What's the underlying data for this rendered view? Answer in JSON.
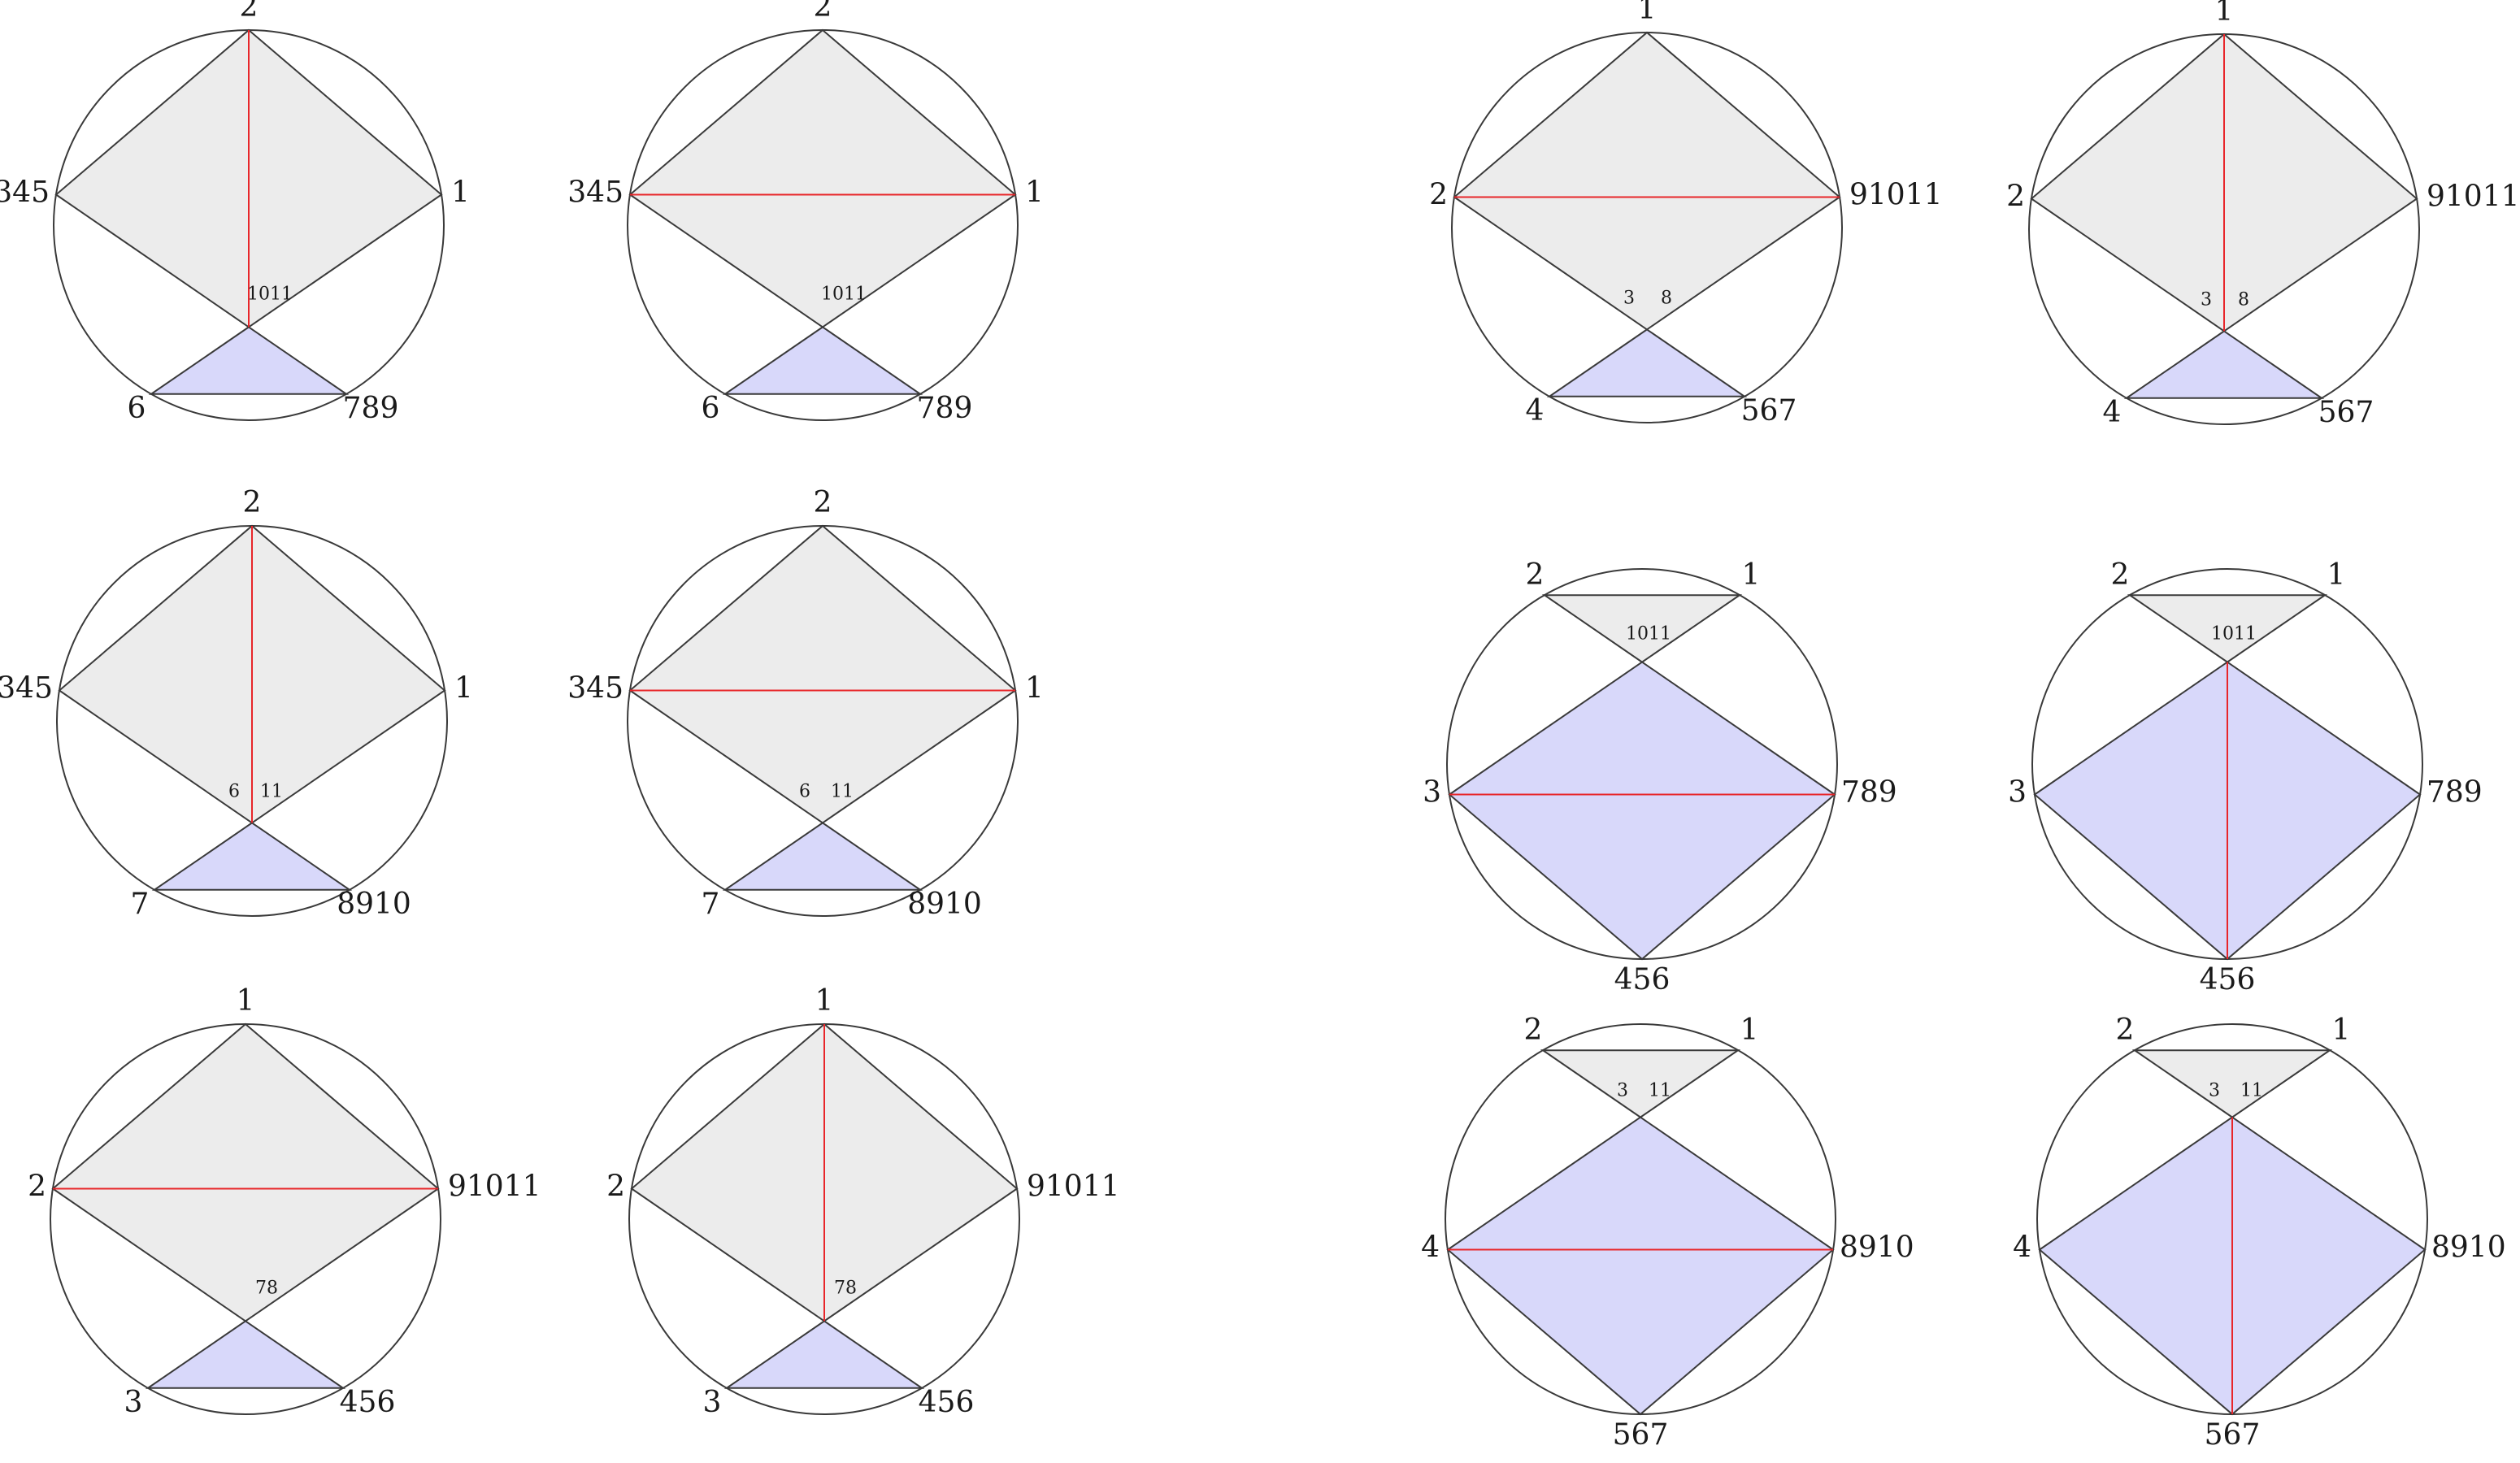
{
  "diagrams": [
    {
      "id": "r1c1",
      "scheme": "A",
      "diag": "vertical",
      "labels": {
        "top": "2",
        "left": "345",
        "right": "1",
        "bl": "6",
        "br": "789"
      },
      "inner": [
        "1011"
      ]
    },
    {
      "id": "r1c2",
      "scheme": "A",
      "diag": "horizontal",
      "labels": {
        "top": "2",
        "left": "345",
        "right": "1",
        "bl": "6",
        "br": "789"
      },
      "inner": [
        "1011"
      ]
    },
    {
      "id": "r1c3",
      "scheme": "A",
      "diag": "horizontal",
      "labels": {
        "top": "1",
        "left": "2",
        "right": "91011",
        "bl": "4",
        "br": "567"
      },
      "inner": [
        "3",
        "8"
      ]
    },
    {
      "id": "r1c4",
      "scheme": "A",
      "diag": "vertical",
      "labels": {
        "top": "1",
        "left": "2",
        "right": "91011",
        "bl": "4",
        "br": "567"
      },
      "inner": [
        "3",
        "8"
      ]
    },
    {
      "id": "r2c1",
      "scheme": "A",
      "diag": "vertical",
      "labels": {
        "top": "2",
        "left": "345",
        "right": "1",
        "bl": "7",
        "br": "8910"
      },
      "inner": [
        "6",
        "11"
      ]
    },
    {
      "id": "r2c2",
      "scheme": "A",
      "diag": "horizontal",
      "labels": {
        "top": "2",
        "left": "345",
        "right": "1",
        "bl": "7",
        "br": "8910"
      },
      "inner": [
        "6",
        "11"
      ]
    },
    {
      "id": "r2c3",
      "scheme": "B",
      "diag": "horizontal",
      "labels": {
        "tl": "2",
        "tr": "1",
        "left": "3",
        "right": "789",
        "bottom": "456"
      },
      "inner": [
        "1011"
      ]
    },
    {
      "id": "r2c4",
      "scheme": "B",
      "diag": "vertical",
      "labels": {
        "tl": "2",
        "tr": "1",
        "left": "3",
        "right": "789",
        "bottom": "456"
      },
      "inner": [
        "1011"
      ]
    },
    {
      "id": "r3c1",
      "scheme": "A",
      "diag": "horizontal",
      "labels": {
        "top": "1",
        "left": "2",
        "right": "91011",
        "bl": "3",
        "br": "456"
      },
      "inner": [
        "78"
      ]
    },
    {
      "id": "r3c2",
      "scheme": "A",
      "diag": "vertical",
      "labels": {
        "top": "1",
        "left": "2",
        "right": "91011",
        "bl": "3",
        "br": "456"
      },
      "inner": [
        "78"
      ]
    },
    {
      "id": "r3c3",
      "scheme": "B",
      "diag": "horizontal",
      "labels": {
        "tl": "2",
        "tr": "1",
        "left": "4",
        "right": "8910",
        "bottom": "567"
      },
      "inner": [
        "3",
        "11"
      ]
    },
    {
      "id": "r3c4",
      "scheme": "B",
      "diag": "vertical",
      "labels": {
        "tl": "2",
        "tr": "1",
        "left": "4",
        "right": "8910",
        "bottom": "567"
      },
      "inner": [
        "3",
        "11"
      ]
    }
  ],
  "colors": {
    "gray_region": "#ececec",
    "blue_region": "#d8d8fa",
    "diagonal": "#e8262a",
    "stroke": "#3a3a3a"
  }
}
